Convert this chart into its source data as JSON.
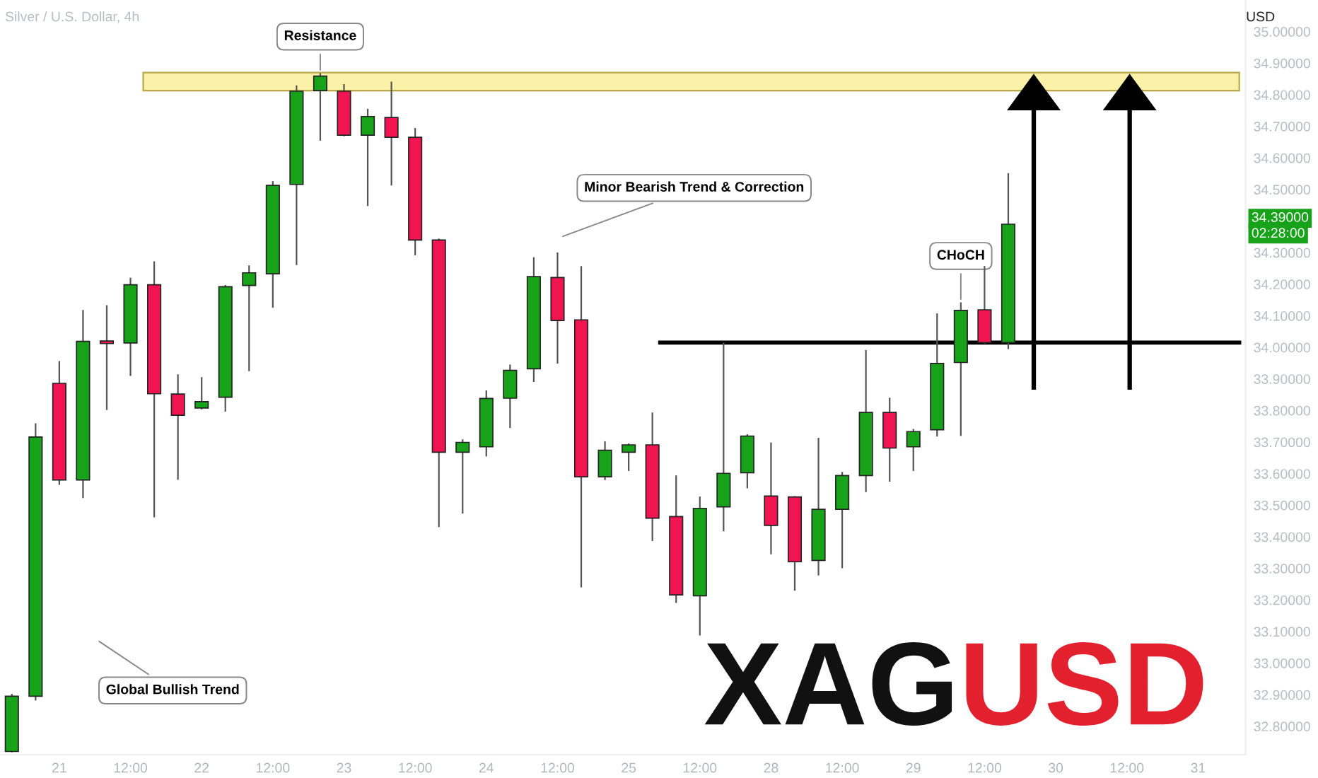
{
  "chart_data": {
    "type": "candlestick",
    "title": "Silver / U.S. Dollar, 4h",
    "ylabel": "USD",
    "categories": [
      null,
      null,
      "21",
      null,
      null,
      "12:00",
      null,
      null,
      "22",
      null,
      null,
      "12:00",
      null,
      null,
      "23",
      null,
      null,
      "12:00",
      null,
      null,
      "24",
      null,
      null,
      "12:00",
      null,
      null,
      "25",
      null,
      null,
      "12:00",
      null,
      null,
      "28",
      null,
      null,
      "12:00",
      null,
      null,
      "29",
      null,
      null,
      "12:00",
      null,
      null,
      "30",
      null,
      null,
      "12:00",
      null,
      null,
      "31",
      null,
      null
    ],
    "ohlc": [
      [
        32.72,
        32.9,
        32.72,
        32.895
      ],
      [
        32.895,
        33.757,
        32.884,
        33.716
      ],
      [
        33.886,
        33.954,
        33.567,
        33.58
      ],
      [
        33.58,
        34.116,
        33.525,
        34.019
      ],
      [
        34.02,
        34.131,
        33.804,
        34.012
      ],
      [
        34.014,
        34.218,
        33.912,
        34.198
      ],
      [
        34.198,
        34.27,
        33.464,
        33.853
      ],
      [
        33.852,
        33.912,
        33.583,
        33.785
      ],
      [
        33.808,
        33.903,
        33.806,
        33.828
      ],
      [
        33.842,
        34.195,
        33.799,
        34.192
      ],
      [
        34.196,
        34.257,
        33.927,
        34.236
      ],
      [
        34.233,
        34.524,
        34.128,
        34.513
      ],
      [
        34.516,
        34.827,
        34.263,
        34.811
      ],
      [
        34.813,
        34.866,
        34.657,
        34.859
      ],
      [
        34.811,
        34.831,
        34.671,
        34.672
      ],
      [
        34.672,
        34.753,
        34.45,
        34.731
      ],
      [
        34.728,
        34.839,
        34.515,
        34.665
      ],
      [
        34.665,
        34.692,
        34.294,
        34.34
      ],
      [
        34.34,
        34.342,
        33.433,
        33.668
      ],
      [
        33.668,
        33.706,
        33.476,
        33.699
      ],
      [
        33.685,
        33.861,
        33.657,
        33.838
      ],
      [
        33.839,
        33.943,
        33.747,
        33.927
      ],
      [
        33.932,
        34.283,
        33.893,
        34.224
      ],
      [
        34.221,
        34.298,
        33.951,
        34.085
      ],
      [
        34.087,
        34.255,
        33.242,
        33.59
      ],
      [
        33.59,
        33.7,
        33.582,
        33.674
      ],
      [
        33.668,
        33.693,
        33.611,
        33.691
      ],
      [
        33.691,
        33.791,
        33.389,
        33.459
      ],
      [
        33.464,
        33.592,
        33.193,
        33.216
      ],
      [
        33.213,
        33.525,
        33.09,
        33.49
      ],
      [
        33.495,
        34.012,
        33.42,
        33.601
      ],
      [
        33.603,
        33.722,
        33.556,
        33.719
      ],
      [
        33.529,
        33.696,
        33.347,
        33.436
      ],
      [
        33.526,
        33.526,
        33.232,
        33.321
      ],
      [
        33.325,
        33.711,
        33.28,
        33.487
      ],
      [
        33.487,
        33.603,
        33.303,
        33.594
      ],
      [
        33.594,
        33.989,
        33.544,
        33.794
      ],
      [
        33.794,
        33.838,
        33.577,
        33.681
      ],
      [
        33.685,
        33.739,
        33.611,
        33.733
      ],
      [
        33.739,
        34.105,
        33.72,
        33.949
      ],
      [
        33.952,
        34.14,
        33.722,
        34.117
      ],
      [
        34.119,
        34.255,
        34.014,
        34.015
      ],
      [
        34.015,
        34.549,
        33.997,
        34.39
      ],
      null,
      null,
      null,
      null,
      null,
      null,
      null,
      null,
      null,
      null
    ],
    "colors": [
      "#17a21a",
      "#17a21a",
      "#f01550",
      "#17a21a",
      "#f01550",
      "#17a21a",
      "#f01550",
      "#f01550",
      "#17a21a",
      "#17a21a",
      "#17a21a",
      "#17a21a",
      "#17a21a",
      "#17a21a",
      "#f01550",
      "#17a21a",
      "#f01550",
      "#f01550",
      "#f01550",
      "#17a21a",
      "#17a21a",
      "#17a21a",
      "#17a21a",
      "#f01550",
      "#f01550",
      "#17a21a",
      "#17a21a",
      "#f01550",
      "#f01550",
      "#17a21a",
      "#17a21a",
      "#17a21a",
      "#f01550",
      "#f01550",
      "#17a21a",
      "#17a21a",
      "#17a21a",
      "#f01550",
      "#17a21a",
      "#17a21a",
      "#17a21a",
      "#f01550",
      "#17a21a",
      null,
      null,
      null,
      null,
      null,
      null,
      null,
      null,
      null,
      null
    ],
    "ylim": [
      32.71,
      35.1
    ],
    "yticks": [
      {
        "value": 32.8,
        "label": "32.80000"
      },
      {
        "value": 32.9,
        "label": "32.90000"
      },
      {
        "value": 33.0,
        "label": "33.00000"
      },
      {
        "value": 33.1,
        "label": "33.10000"
      },
      {
        "value": 33.2,
        "label": "33.20000"
      },
      {
        "value": 33.3,
        "label": "33.30000"
      },
      {
        "value": 33.4,
        "label": "33.40000"
      },
      {
        "value": 33.5,
        "label": "33.50000"
      },
      {
        "value": 33.6,
        "label": "33.60000"
      },
      {
        "value": 33.7,
        "label": "33.70000"
      },
      {
        "value": 33.8,
        "label": "33.80000"
      },
      {
        "value": 33.9,
        "label": "33.90000"
      },
      {
        "value": 34.0,
        "label": "34.00000"
      },
      {
        "value": 34.1,
        "label": "34.10000"
      },
      {
        "value": 34.2,
        "label": "34.20000"
      },
      {
        "value": 34.3,
        "label": "34.30000"
      },
      {
        "value": 34.5,
        "label": "34.50000"
      },
      {
        "value": 34.6,
        "label": "34.60000"
      },
      {
        "value": 34.7,
        "label": "34.70000"
      },
      {
        "value": 34.8,
        "label": "34.80000"
      },
      {
        "value": 34.9,
        "label": "34.90000"
      },
      {
        "value": 35.0,
        "label": "35.00000"
      }
    ],
    "bands": [
      {
        "axis": "y",
        "from": 34.813,
        "to": 34.87,
        "color": "#fbf1a9"
      }
    ],
    "ref_lines": [
      {
        "axis": "y",
        "value": 34.015,
        "color": "#000000",
        "line_style": "solid"
      }
    ],
    "annotations": [
      {
        "text": "Resistance",
        "y": 34.866
      },
      "Minor Bearish Trend & Correction",
      {
        "text": "CHoCH",
        "y": 34.14
      },
      "Global Bullish Trend",
      "34.39000",
      "02:28:00",
      "XAG",
      "USD"
    ],
    "grid": false
  }
}
